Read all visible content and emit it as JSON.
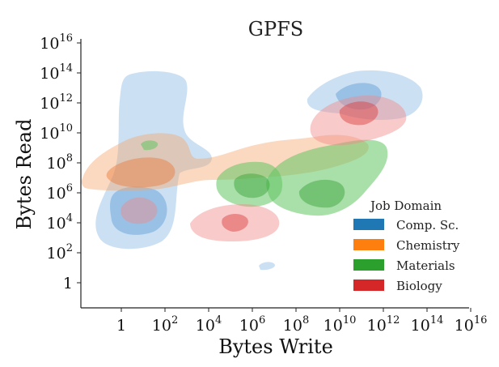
{
  "chart_data": {
    "type": "kde-density-contour",
    "title": "GPFS",
    "xlabel": "Bytes Write",
    "ylabel": "Bytes Read",
    "x_scale": "log10",
    "y_scale": "log10",
    "x_range": [
      0.01,
      1e+16
    ],
    "y_range": [
      0.01,
      1e+16
    ],
    "x_ticks": [
      {
        "base": "1",
        "exp": ""
      },
      {
        "base": "10",
        "exp": "2"
      },
      {
        "base": "10",
        "exp": "4"
      },
      {
        "base": "10",
        "exp": "6"
      },
      {
        "base": "10",
        "exp": "8"
      },
      {
        "base": "10",
        "exp": "10"
      },
      {
        "base": "10",
        "exp": "12"
      },
      {
        "base": "10",
        "exp": "14"
      },
      {
        "base": "10",
        "exp": "16"
      }
    ],
    "y_ticks": [
      {
        "base": "1",
        "exp": ""
      },
      {
        "base": "10",
        "exp": "2"
      },
      {
        "base": "10",
        "exp": "4"
      },
      {
        "base": "10",
        "exp": "6"
      },
      {
        "base": "10",
        "exp": "8"
      },
      {
        "base": "10",
        "exp": "10"
      },
      {
        "base": "10",
        "exp": "12"
      },
      {
        "base": "10",
        "exp": "14"
      },
      {
        "base": "10",
        "exp": "16"
      }
    ],
    "grid": false,
    "legend": {
      "title": "Job Domain",
      "placement": "lower-right",
      "entries": [
        {
          "name": "Comp. Sc.",
          "color": "#1f77b4"
        },
        {
          "name": "Chemistry",
          "color": "#ff7f0e"
        },
        {
          "name": "Materials",
          "color": "#2ca02c"
        },
        {
          "name": "Biology",
          "color": "#d62728"
        }
      ]
    },
    "series": [
      {
        "name": "Comp. Sc.",
        "color": "#1f77b4",
        "density_modes": [
          {
            "log_x": 1.1,
            "log_y": 7.1,
            "weight": 1.0
          },
          {
            "log_x": 0.5,
            "log_y": 4.8,
            "weight": 0.7
          },
          {
            "log_x": 10.6,
            "log_y": 13.0,
            "weight": 0.5
          },
          {
            "log_x": 7.0,
            "log_y": -0.8,
            "weight": 0.15
          }
        ]
      },
      {
        "name": "Chemistry",
        "color": "#ff7f0e",
        "density_modes": [
          {
            "log_x": 0.8,
            "log_y": 7.0,
            "weight": 1.0
          },
          {
            "log_x": 5.5,
            "log_y": 7.8,
            "weight": 0.4
          },
          {
            "log_x": 9.5,
            "log_y": 8.8,
            "weight": 0.4
          }
        ]
      },
      {
        "name": "Materials",
        "color": "#2ca02c",
        "density_modes": [
          {
            "log_x": 6.2,
            "log_y": 6.3,
            "weight": 0.9
          },
          {
            "log_x": 9.6,
            "log_y": 5.1,
            "weight": 0.8
          },
          {
            "log_x": 1.4,
            "log_y": 8.7,
            "weight": 0.3
          }
        ]
      },
      {
        "name": "Biology",
        "color": "#d62728",
        "density_modes": [
          {
            "log_x": 10.7,
            "log_y": 11.3,
            "weight": 1.0
          },
          {
            "log_x": 5.5,
            "log_y": 3.8,
            "weight": 0.5
          },
          {
            "log_x": 0.9,
            "log_y": 5.0,
            "weight": 0.5
          }
        ]
      }
    ]
  }
}
